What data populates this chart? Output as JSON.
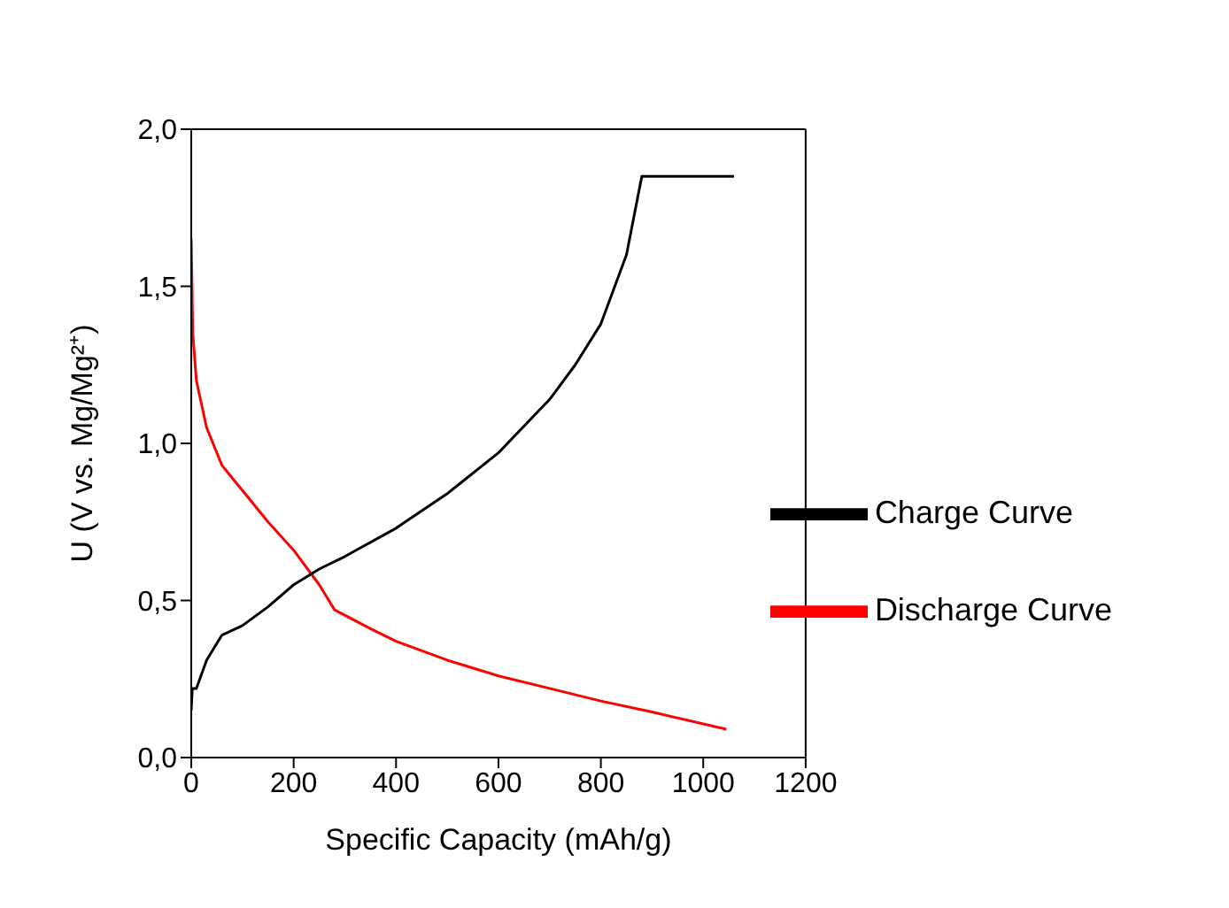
{
  "chart_data": {
    "type": "line",
    "xlabel": "Specific Capacity (mAh/g)",
    "ylabel": "U (V vs. Mg/Mg²⁺)",
    "xlim": [
      0,
      1200
    ],
    "xticks": [
      0,
      200,
      400,
      600,
      800,
      1000,
      1200
    ],
    "ylim": [
      0,
      2
    ],
    "yticks": [
      {
        "value": 0,
        "label": "0,0"
      },
      {
        "value": 0.5,
        "label": "0,5"
      },
      {
        "value": 1,
        "label": "1,0"
      },
      {
        "value": 1.5,
        "label": "1,5"
      },
      {
        "value": 2,
        "label": "2,0"
      }
    ],
    "legend": "right",
    "grid": false,
    "marker": "none",
    "line_style": "solid",
    "series": [
      {
        "name": "Discharge Curve",
        "color": "#ff0000",
        "x": [
          0,
          3,
          10,
          30,
          60,
          100,
          150,
          200,
          250,
          280,
          350,
          400,
          500,
          600,
          700,
          800,
          900,
          1045
        ],
        "values": [
          1.65,
          1.35,
          1.2,
          1.05,
          0.93,
          0.85,
          0.75,
          0.66,
          0.55,
          0.47,
          0.41,
          0.37,
          0.31,
          0.26,
          0.22,
          0.18,
          0.145,
          0.09
        ]
      },
      {
        "name": "Charge Curve",
        "color": "#000000",
        "x": [
          0,
          2,
          10,
          30,
          60,
          100,
          150,
          200,
          250,
          300,
          400,
          500,
          600,
          700,
          750,
          800,
          850,
          880,
          1060
        ],
        "values": [
          0.15,
          0.22,
          0.22,
          0.31,
          0.39,
          0.42,
          0.48,
          0.55,
          0.6,
          0.64,
          0.73,
          0.84,
          0.97,
          1.14,
          1.25,
          1.38,
          1.6,
          1.85,
          1.85
        ]
      }
    ]
  }
}
